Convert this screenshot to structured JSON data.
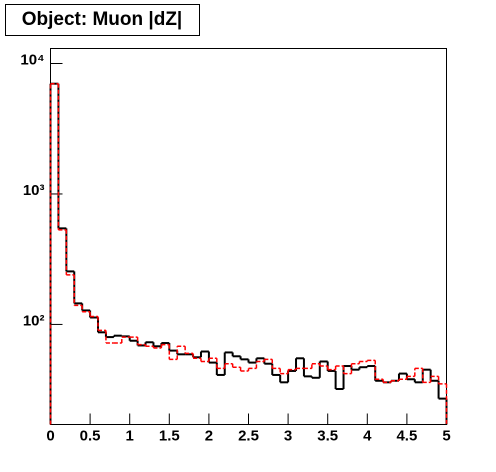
{
  "chart_data": {
    "type": "histogram",
    "title": "Object: Muon |dZ|",
    "bins": [
      0,
      0.1,
      0.2,
      0.3,
      0.4,
      0.5,
      0.6,
      0.7,
      0.8,
      0.9,
      1,
      1.1,
      1.2,
      1.3,
      1.4,
      1.5,
      1.6,
      1.7,
      1.8,
      1.9,
      2,
      2.1,
      2.2,
      2.3,
      2.4,
      2.5,
      2.6,
      2.7,
      2.8,
      2.9,
      3,
      3.1,
      3.2,
      3.3,
      3.4,
      3.5,
      3.6,
      3.7,
      3.8,
      3.9,
      4,
      4.1,
      4.2,
      4.3,
      4.4,
      4.5,
      4.6,
      4.7,
      4.8,
      4.9,
      5
    ],
    "series": [
      {
        "color": "#000000",
        "line_style": "solid",
        "values": [
          7000,
          545,
          255,
          145,
          128,
          113,
          87,
          80,
          82,
          81,
          75,
          69,
          73,
          68,
          72,
          63,
          59,
          59,
          56,
          62,
          51,
          41,
          61,
          57,
          54,
          51,
          55,
          50,
          41,
          36,
          44,
          55,
          40,
          39,
          52,
          44,
          32,
          48,
          45,
          47,
          48,
          37,
          36,
          37,
          42,
          38,
          36,
          45,
          37,
          27
        ]
      },
      {
        "color": "#ff0000",
        "line_style": "dashed",
        "values": [
          7000,
          530,
          240,
          140,
          125,
          115,
          90,
          72,
          72,
          80,
          80,
          70,
          68,
          66,
          70,
          54,
          68,
          60,
          55,
          52,
          55,
          46,
          50,
          47,
          44,
          46,
          52,
          54,
          46,
          42,
          45,
          46,
          46,
          50,
          48,
          45,
          48,
          42,
          50,
          52,
          53,
          38,
          36,
          37,
          38,
          40,
          46,
          36,
          40,
          35
        ]
      }
    ],
    "xlim": [
      0,
      5
    ],
    "xticks": [
      0,
      0.5,
      1,
      1.5,
      2,
      2.5,
      3,
      3.5,
      4,
      4.5,
      5
    ],
    "ylim": [
      17.1,
      13030
    ],
    "log_y": true,
    "yticks": [
      {
        "value": 100,
        "label": "10²"
      },
      {
        "value": 1000,
        "label": "10³"
      },
      {
        "value": 10000,
        "label": "10⁴"
      }
    ]
  }
}
